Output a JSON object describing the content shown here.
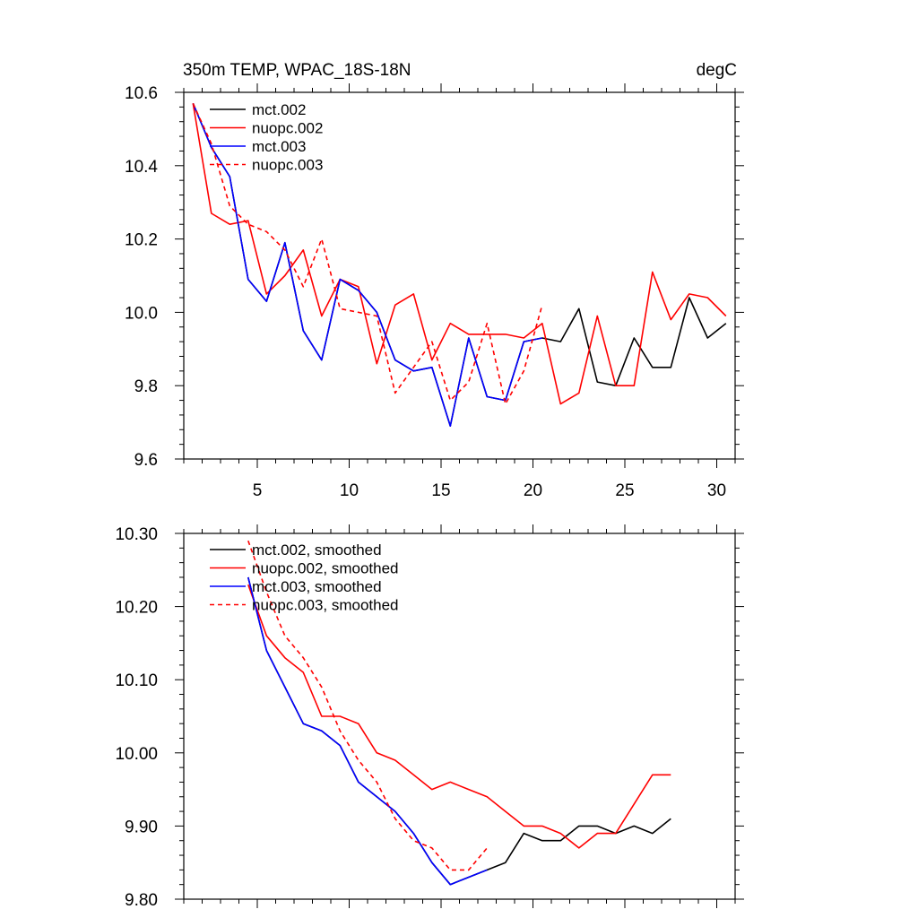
{
  "chart_data": [
    {
      "type": "line",
      "title": "350m TEMP, WPAC_18S-18N",
      "units": "degC",
      "xlabel": "",
      "ylabel": "",
      "xlim": [
        1,
        31
      ],
      "ylim": [
        9.6,
        10.6
      ],
      "xticks": [
        5,
        10,
        15,
        20,
        25,
        30
      ],
      "xtick_labels": [
        "5",
        "10",
        "15",
        "20",
        "25",
        "30"
      ],
      "yticks": [
        9.6,
        9.8,
        10.0,
        10.2,
        10.4,
        10.6
      ],
      "ytick_labels": [
        "9.6",
        "9.8",
        "10.0",
        "10.2",
        "10.4",
        "10.6"
      ],
      "legend_position": "top-left",
      "series": [
        {
          "name": "mct.002",
          "color": "#000000",
          "dash": "solid",
          "x": [
            1.5,
            2.5,
            3.5,
            4.5,
            5.5,
            6.5,
            7.5,
            8.5,
            9.5,
            10.5,
            11.5,
            12.5,
            13.5,
            14.5,
            15.5,
            16.5,
            17.5,
            18.5,
            19.5,
            20.5,
            21.5,
            22.5,
            23.5,
            24.5,
            25.5,
            26.5,
            27.5,
            28.5,
            29.5,
            30.5
          ],
          "values": [
            10.57,
            10.45,
            10.37,
            10.09,
            10.03,
            10.19,
            9.95,
            9.87,
            10.09,
            10.06,
            10.0,
            9.87,
            9.84,
            9.85,
            9.69,
            9.93,
            9.77,
            9.76,
            9.92,
            9.93,
            9.92,
            10.01,
            9.81,
            9.8,
            9.93,
            9.85,
            9.85,
            10.04,
            9.93,
            9.97
          ]
        },
        {
          "name": "nuopc.002",
          "color": "#ff0000",
          "dash": "solid",
          "x": [
            1.5,
            2.5,
            3.5,
            4.5,
            5.5,
            6.5,
            7.5,
            8.5,
            9.5,
            10.5,
            11.5,
            12.5,
            13.5,
            14.5,
            15.5,
            16.5,
            17.5,
            18.5,
            19.5,
            20.5,
            21.5,
            22.5,
            23.5,
            24.5,
            25.5,
            26.5,
            27.5,
            28.5,
            29.5,
            30.5
          ],
          "values": [
            10.57,
            10.27,
            10.24,
            10.25,
            10.05,
            10.1,
            10.17,
            9.99,
            10.09,
            10.07,
            9.86,
            10.02,
            10.05,
            9.87,
            9.97,
            9.94,
            9.94,
            9.94,
            9.93,
            9.97,
            9.75,
            9.78,
            9.99,
            9.8,
            9.8,
            10.11,
            9.98,
            10.05,
            10.04,
            9.99
          ]
        },
        {
          "name": "mct.003",
          "color": "#0000ff",
          "dash": "solid",
          "x": [
            1.5,
            2.5,
            3.5,
            4.5,
            5.5,
            6.5,
            7.5,
            8.5,
            9.5,
            10.5,
            11.5,
            12.5,
            13.5,
            14.5,
            15.5,
            16.5,
            17.5,
            18.5,
            19.5,
            20.5
          ],
          "values": [
            10.57,
            10.45,
            10.37,
            10.09,
            10.03,
            10.19,
            9.95,
            9.87,
            10.09,
            10.06,
            10.0,
            9.87,
            9.84,
            9.85,
            9.69,
            9.93,
            9.77,
            9.76,
            9.92,
            9.93
          ]
        },
        {
          "name": "nuopc.003",
          "color": "#ff0000",
          "dash": "dashed",
          "x": [
            1.5,
            2.5,
            3.5,
            4.5,
            5.5,
            6.5,
            7.5,
            8.5,
            9.5,
            10.5,
            11.5,
            12.5,
            13.5,
            14.5,
            15.5,
            16.5,
            17.5,
            18.5,
            19.5,
            20.5
          ],
          "values": [
            10.57,
            10.46,
            10.29,
            10.24,
            10.22,
            10.17,
            10.07,
            10.2,
            10.01,
            10.0,
            9.99,
            9.78,
            9.85,
            9.92,
            9.76,
            9.81,
            9.97,
            9.75,
            9.84,
            10.02
          ]
        }
      ]
    },
    {
      "type": "line",
      "title": "",
      "xlabel": "",
      "ylabel": "",
      "xlim": [
        1,
        31
      ],
      "ylim": [
        9.8,
        10.3
      ],
      "xticks": [
        5,
        10,
        15,
        20,
        25,
        30
      ],
      "xtick_labels": [],
      "yticks": [
        9.8,
        9.9,
        10.0,
        10.1,
        10.2,
        10.3
      ],
      "ytick_labels": [
        "9.80",
        "9.90",
        "10.00",
        "10.10",
        "10.20",
        "10.30"
      ],
      "legend_position": "top-left",
      "series": [
        {
          "name": "mct.002, smoothed",
          "color": "#000000",
          "dash": "solid",
          "x": [
            4.5,
            5.5,
            6.5,
            7.5,
            8.5,
            9.5,
            10.5,
            11.5,
            12.5,
            13.5,
            14.5,
            15.5,
            16.5,
            17.5,
            18.5,
            19.5,
            20.5,
            21.5,
            22.5,
            23.5,
            24.5,
            25.5,
            26.5,
            27.5
          ],
          "values": [
            10.24,
            10.14,
            10.09,
            10.04,
            10.03,
            10.01,
            9.96,
            9.94,
            9.92,
            9.89,
            9.85,
            9.82,
            9.83,
            9.84,
            9.85,
            9.89,
            9.88,
            9.88,
            9.9,
            9.9,
            9.89,
            9.9,
            9.89,
            9.91
          ]
        },
        {
          "name": "nuopc.002, smoothed",
          "color": "#ff0000",
          "dash": "solid",
          "x": [
            4.5,
            5.5,
            6.5,
            7.5,
            8.5,
            9.5,
            10.5,
            11.5,
            12.5,
            13.5,
            14.5,
            15.5,
            16.5,
            17.5,
            18.5,
            19.5,
            20.5,
            21.5,
            22.5,
            23.5,
            24.5,
            25.5,
            26.5,
            27.5
          ],
          "values": [
            10.23,
            10.16,
            10.13,
            10.11,
            10.05,
            10.05,
            10.04,
            10.0,
            9.99,
            9.97,
            9.95,
            9.96,
            9.95,
            9.94,
            9.92,
            9.9,
            9.9,
            9.89,
            9.87,
            9.89,
            9.89,
            9.93,
            9.97,
            9.97
          ]
        },
        {
          "name": "mct.003, smoothed",
          "color": "#0000ff",
          "dash": "solid",
          "x": [
            4.5,
            5.5,
            6.5,
            7.5,
            8.5,
            9.5,
            10.5,
            11.5,
            12.5,
            13.5,
            14.5,
            15.5,
            16.5,
            17.5
          ],
          "values": [
            10.24,
            10.14,
            10.09,
            10.04,
            10.03,
            10.01,
            9.96,
            9.94,
            9.92,
            9.89,
            9.85,
            9.82,
            9.83,
            9.84
          ]
        },
        {
          "name": "nuopc.003, smoothed",
          "color": "#ff0000",
          "dash": "dashed",
          "x": [
            4.5,
            5.5,
            6.5,
            7.5,
            8.5,
            9.5,
            10.5,
            11.5,
            12.5,
            13.5,
            14.5,
            15.5,
            16.5,
            17.5
          ],
          "values": [
            10.29,
            10.22,
            10.16,
            10.13,
            10.09,
            10.03,
            9.99,
            9.96,
            9.91,
            9.88,
            9.87,
            9.84,
            9.84,
            9.87
          ]
        }
      ]
    }
  ]
}
